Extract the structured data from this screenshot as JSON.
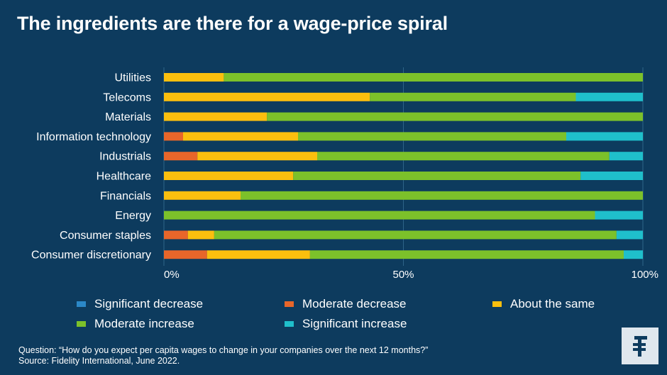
{
  "title": "The ingredients are there for a wage-price spiral",
  "legend": [
    {
      "label": "Significant decrease",
      "color": "#2b88c8"
    },
    {
      "label": "Moderate decrease",
      "color": "#e8662a"
    },
    {
      "label": "About the same",
      "color": "#fbbf0e"
    },
    {
      "label": "Moderate increase",
      "color": "#7cc12a"
    },
    {
      "label": "Significant increase",
      "color": "#1fbfcb"
    }
  ],
  "footer": {
    "question": "Question: “How do you expect per capita wages to change in your companies over the next 12 months?”",
    "source": "Source: Fidelity International, June 2022."
  },
  "logo_icon": "fidelity-f-icon",
  "chart_data": {
    "type": "bar",
    "orientation": "horizontal",
    "stacked": true,
    "categories": [
      "Utilities",
      "Telecoms",
      "Materials",
      "Information technology",
      "Industrials",
      "Healthcare",
      "Financials",
      "Energy",
      "Consumer staples",
      "Consumer discretionary"
    ],
    "series": [
      {
        "name": "Significant decrease",
        "color": "#2b88c8",
        "values": [
          0,
          0,
          0,
          0,
          0,
          0,
          0,
          0,
          0,
          0
        ]
      },
      {
        "name": "Moderate decrease",
        "color": "#e8662a",
        "values": [
          0,
          0,
          0,
          4,
          7,
          0,
          0,
          0,
          5,
          9
        ]
      },
      {
        "name": "About the same",
        "color": "#fbbf0e",
        "values": [
          12.5,
          43,
          21.5,
          24,
          25,
          27,
          16,
          0,
          5.5,
          21.5
        ]
      },
      {
        "name": "Moderate increase",
        "color": "#7cc12a",
        "values": [
          87.5,
          43,
          78.5,
          56,
          61,
          60,
          84,
          90,
          84,
          65.5
        ]
      },
      {
        "name": "Significant increase",
        "color": "#1fbfcb",
        "values": [
          0,
          14,
          0,
          16,
          7,
          13,
          0,
          10,
          5.5,
          4
        ]
      }
    ],
    "xlim": [
      0,
      100
    ],
    "xticks": [
      "0%",
      "50%",
      "100%"
    ],
    "grid": true,
    "legend_position": "bottom"
  }
}
